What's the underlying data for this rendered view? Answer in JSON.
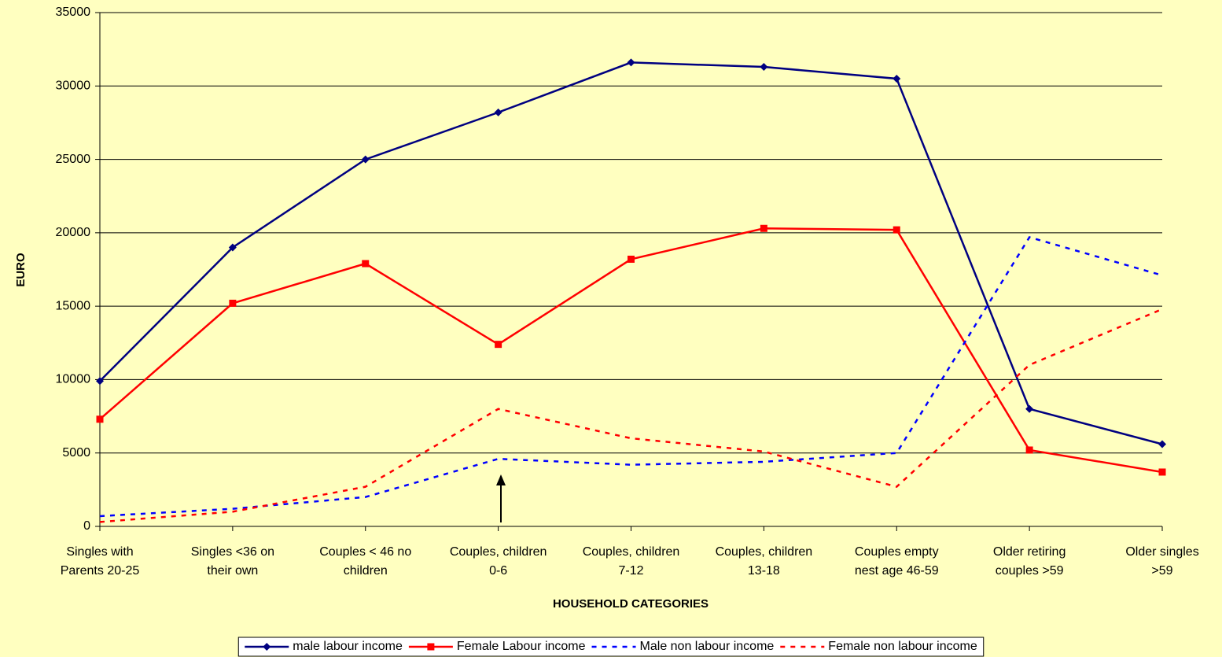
{
  "chart_data": {
    "type": "line",
    "x_label": "HOUSEHOLD CATEGORIES",
    "y_label": "EURO",
    "categories": [
      [
        "Singles with",
        "Parents 20-25"
      ],
      [
        "Singles  <36 on",
        "their own"
      ],
      [
        "Couples < 46 no",
        "children"
      ],
      [
        "Couples, children",
        "0-6"
      ],
      [
        "Couples, children",
        "7-12"
      ],
      [
        "Couples, children",
        "13-18"
      ],
      [
        "Couples empty",
        "nest age 46-59"
      ],
      [
        "Older retiring",
        "couples >59"
      ],
      [
        "Older singles",
        ">59"
      ]
    ],
    "series": [
      {
        "name": "male labour income",
        "color": "#000080",
        "style": "solid",
        "marker": "diamond",
        "values": [
          9900,
          19000,
          25000,
          28200,
          31600,
          31300,
          30500,
          8000,
          5600
        ]
      },
      {
        "name": "Female Labour income",
        "color": "#ff0000",
        "style": "solid",
        "marker": "square",
        "values": [
          7300,
          15200,
          17900,
          12400,
          18200,
          20300,
          20200,
          5200,
          3700
        ]
      },
      {
        "name": "Male non labour income",
        "color": "#0000ff",
        "style": "dashed",
        "marker": "none",
        "values": [
          700,
          1200,
          2000,
          4600,
          4200,
          4400,
          5000,
          19700,
          17100
        ]
      },
      {
        "name": "Female non labour income",
        "color": "#ff0000",
        "style": "dashed",
        "marker": "none",
        "values": [
          300,
          1000,
          2700,
          8000,
          6000,
          5100,
          2700,
          11000,
          14800
        ]
      }
    ],
    "ylim": [
      0,
      35000
    ],
    "yticks": [
      0,
      5000,
      10000,
      15000,
      20000,
      25000,
      30000,
      35000
    ],
    "grid": true,
    "legend": "bottom"
  }
}
